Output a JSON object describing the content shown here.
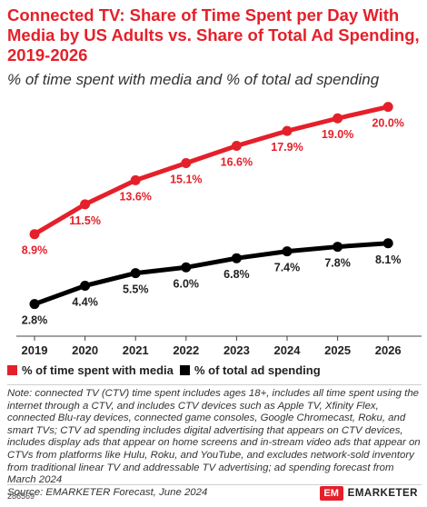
{
  "chart_data": {
    "type": "line",
    "title": "Connected TV: Share of Time Spent per Day With Media by US Adults vs. Share of Total Ad Spending, 2019-2026",
    "subtitle": "% of time spent with media and % of total ad spending",
    "categories": [
      "2019",
      "2020",
      "2021",
      "2022",
      "2023",
      "2024",
      "2025",
      "2026"
    ],
    "series": [
      {
        "name": "% of time spent with media",
        "color": "#e4202a",
        "values": [
          8.9,
          11.5,
          13.6,
          15.1,
          16.6,
          17.9,
          19.0,
          20.0
        ],
        "labels": [
          "8.9%",
          "11.5%",
          "13.6%",
          "15.1%",
          "16.6%",
          "17.9%",
          "19.0%",
          "20.0%"
        ]
      },
      {
        "name": "% of total ad spending",
        "color": "#000000",
        "values": [
          2.8,
          4.4,
          5.5,
          6.0,
          6.8,
          7.4,
          7.8,
          8.1
        ],
        "labels": [
          "2.8%",
          "4.4%",
          "5.5%",
          "6.0%",
          "6.8%",
          "7.4%",
          "7.8%",
          "8.1%"
        ]
      }
    ],
    "ylim": [
      0,
      21
    ],
    "grid": false,
    "legend": "bottom-left"
  },
  "note": "Note: connected TV (CTV) time spent includes ages 18+, includes all time spent using the internet through a CTV, and includes CTV devices such as Apple TV, Xfinity Flex, connected Blu-ray devices, connected game consoles, Google Chromecast, Roku, and smart TVs; CTV ad spending includes digital advertising that appears on CTV devices, includes display ads that appear on home screens and in-stream video ads that appear on CTVs from platforms like Hulu, Roku, and YouTube, and excludes network-sold inventory from traditional linear TV and addressable TV advertising; ad spending forecast from March 2024",
  "source": "Source: EMARKETER Forecast, June 2024",
  "chart_id": "286569",
  "brand": {
    "mark": "EM",
    "name": "EMARKETER"
  }
}
